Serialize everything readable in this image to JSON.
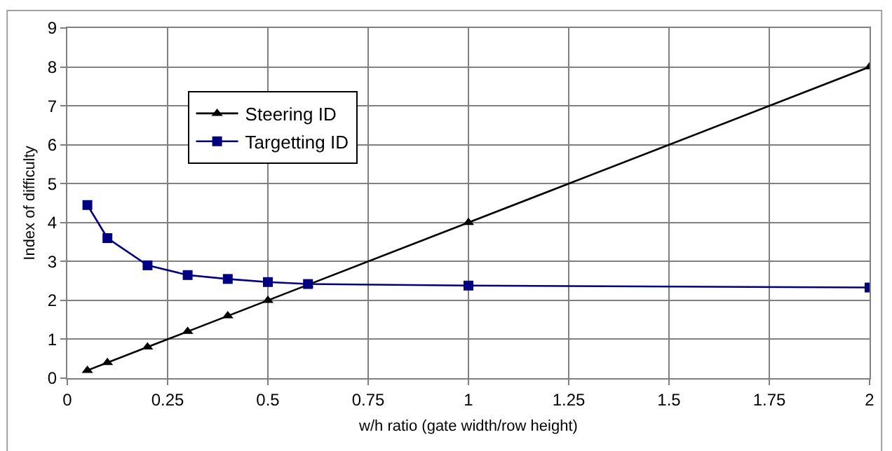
{
  "chart_data": {
    "type": "line",
    "xlabel": "w/h ratio (gate width/row height)",
    "ylabel": "Index of difficulty",
    "xlim": [
      0,
      2
    ],
    "xticks": [
      0,
      0.25,
      0.5,
      0.75,
      1,
      1.25,
      1.5,
      1.75,
      2
    ],
    "ylim": [
      0,
      9
    ],
    "yticks": [
      0,
      1,
      2,
      3,
      4,
      5,
      6,
      7,
      8,
      9
    ],
    "grid": true,
    "legend": "top left",
    "series": [
      {
        "name": "Steering ID",
        "color": "#000000",
        "marker": "triangle",
        "x": [
          0.05,
          0.1,
          0.2,
          0.3,
          0.4,
          0.5,
          0.6,
          1,
          2
        ],
        "values": [
          0.2,
          0.4,
          0.8,
          1.2,
          1.6,
          2.0,
          2.4,
          4,
          8
        ]
      },
      {
        "name": "Targetting ID",
        "color": "#000080",
        "marker": "square",
        "x": [
          0.05,
          0.1,
          0.2,
          0.3,
          0.4,
          0.5,
          0.6,
          1,
          2
        ],
        "values": [
          4.45,
          3.6,
          2.9,
          2.65,
          2.55,
          2.47,
          2.42,
          2.38,
          2.33
        ]
      }
    ]
  }
}
